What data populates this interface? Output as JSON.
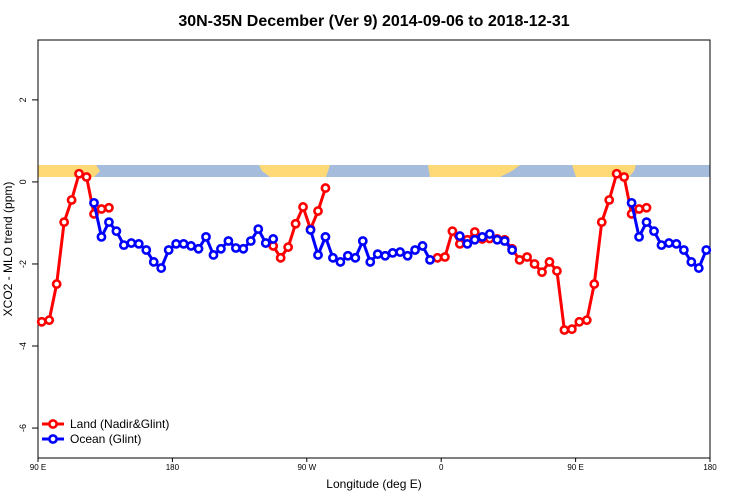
{
  "chart_data": {
    "type": "line",
    "title": "30N-35N December (Ver 9)   2014-09-06 to 2018-12-31",
    "x_label": "Longitude (deg E)",
    "y_label": "XCO2 - MLO trend (ppm)",
    "xlim": [
      90,
      540
    ],
    "xticks": [
      {
        "value": 90,
        "label": "90 E"
      },
      180,
      {
        "value": 270,
        "label": "90 W"
      },
      {
        "value": 360,
        "label": "0"
      },
      {
        "value": 450,
        "label": "90 E"
      },
      {
        "value": 540,
        "label": "180"
      }
    ],
    "ylim": [
      -6.73,
      3.46
    ],
    "yticks": [
      -6,
      -4,
      -2,
      0,
      2
    ],
    "legend": "bottomleft",
    "series": [
      {
        "name": "Land (Nadir&Glint)",
        "color": "#ff0000",
        "x": [
          92.5,
          97.5,
          102.5,
          107.5,
          112.5,
          117.5,
          122.5,
          127.5,
          132.5,
          137.5,
          null,
          247.5,
          252.5,
          257.5,
          262.5,
          267.5,
          272.5,
          277.5,
          282.5,
          null,
          357.5,
          362.5,
          367.5,
          372.5,
          377.5,
          382.5,
          387.5,
          392.5,
          397.5,
          402.5,
          407.5,
          412.5,
          417.5,
          422.5,
          427.5,
          432.5,
          437.5,
          442.5,
          447.5,
          452.5,
          457.5,
          462.5,
          467.5,
          472.5,
          477.5,
          482.5,
          487.5,
          492.5,
          497.5
        ],
        "values": [
          -3.41,
          -3.37,
          -2.49,
          -0.98,
          -0.44,
          0.2,
          0.12,
          -0.78,
          -0.66,
          -0.63,
          null,
          -1.56,
          -1.85,
          -1.59,
          -1.02,
          -0.61,
          -1.15,
          -0.71,
          -0.15,
          null,
          -1.85,
          -1.83,
          -1.2,
          -1.51,
          -1.41,
          -1.22,
          -1.39,
          -1.38,
          -1.39,
          -1.41,
          -1.63,
          -1.9,
          -1.83,
          -2,
          -2.2,
          -1.95,
          -2.17,
          -3.61,
          -3.59,
          -3.41,
          -3.37,
          -2.49,
          -0.98,
          -0.44,
          0.2,
          0.12,
          -0.78,
          -0.66,
          -0.63
        ]
      },
      {
        "name": "Ocean (Glint)",
        "color": "#0000ff",
        "x": [
          127.5,
          132.5,
          137.5,
          142.5,
          147.5,
          152.5,
          157.5,
          162.5,
          167.5,
          172.5,
          177.5,
          182.5,
          187.5,
          192.5,
          197.5,
          202.5,
          207.5,
          212.5,
          217.5,
          222.5,
          227.5,
          232.5,
          237.5,
          242.5,
          247.5,
          null,
          272.5,
          277.5,
          282.5,
          287.5,
          292.5,
          297.5,
          302.5,
          307.5,
          312.5,
          317.5,
          322.5,
          327.5,
          332.5,
          337.5,
          342.5,
          347.5,
          352.5,
          null,
          372.5,
          377.5,
          382.5,
          387.5,
          392.5,
          397.5,
          402.5,
          407.5,
          null,
          487.5,
          492.5,
          497.5,
          502.5,
          507.5,
          512.5,
          517.5,
          522.5,
          527.5,
          532.5,
          537.5
        ],
        "values": [
          -0.51,
          -1.34,
          -0.98,
          -1.2,
          -1.54,
          -1.49,
          -1.51,
          -1.66,
          -1.95,
          -2.1,
          -1.66,
          -1.51,
          -1.51,
          -1.56,
          -1.63,
          -1.34,
          -1.78,
          -1.63,
          -1.44,
          -1.61,
          -1.63,
          -1.44,
          -1.15,
          -1.49,
          -1.39,
          null,
          -1.17,
          -1.78,
          -1.34,
          -1.85,
          -1.95,
          -1.8,
          -1.85,
          -1.44,
          -1.95,
          -1.76,
          -1.8,
          -1.73,
          -1.71,
          -1.8,
          -1.66,
          -1.56,
          -1.9,
          null,
          -1.32,
          -1.51,
          -1.41,
          -1.34,
          -1.27,
          -1.41,
          -1.44,
          -1.66,
          null,
          -0.51,
          -1.34,
          -0.98,
          -1.2,
          -1.54,
          -1.49,
          -1.51,
          -1.66,
          -1.95,
          -2.1,
          -1.66
        ]
      }
    ]
  }
}
